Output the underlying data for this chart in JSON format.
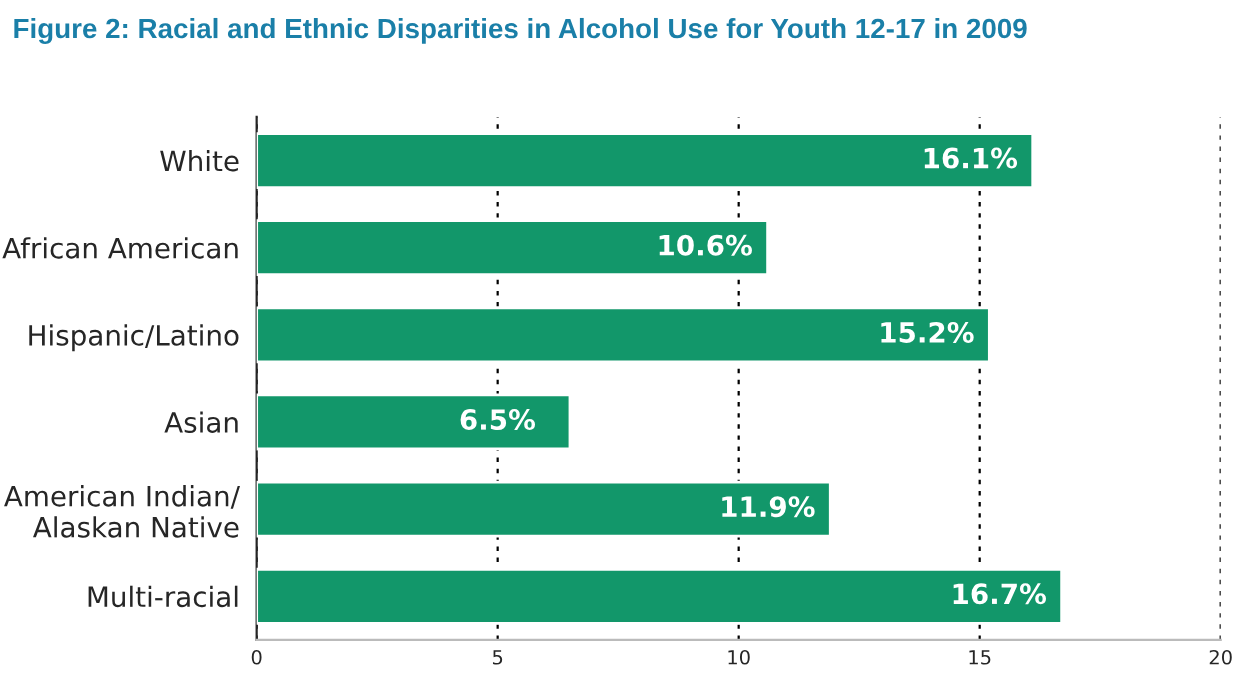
{
  "chart_data": {
    "type": "bar",
    "orientation": "horizontal",
    "title": "Figure 2: Racial and Ethnic Disparities in Alcohol Use for Youth 12-17 in 2009",
    "categories": [
      "White",
      "African American",
      "Hispanic/Latino",
      "Asian",
      "American Indian/\nAlaskan Native",
      "Multi-racial"
    ],
    "values": [
      16.1,
      10.6,
      15.2,
      6.5,
      11.9,
      16.7
    ],
    "value_labels": [
      "16.1%",
      "10.6%",
      "15.2%",
      "6.5%",
      "11.9%",
      "16.7%"
    ],
    "color": "#12976a",
    "xlim": [
      0,
      20
    ],
    "xticks": [
      0,
      5,
      10,
      15,
      20
    ],
    "grid": "x"
  }
}
